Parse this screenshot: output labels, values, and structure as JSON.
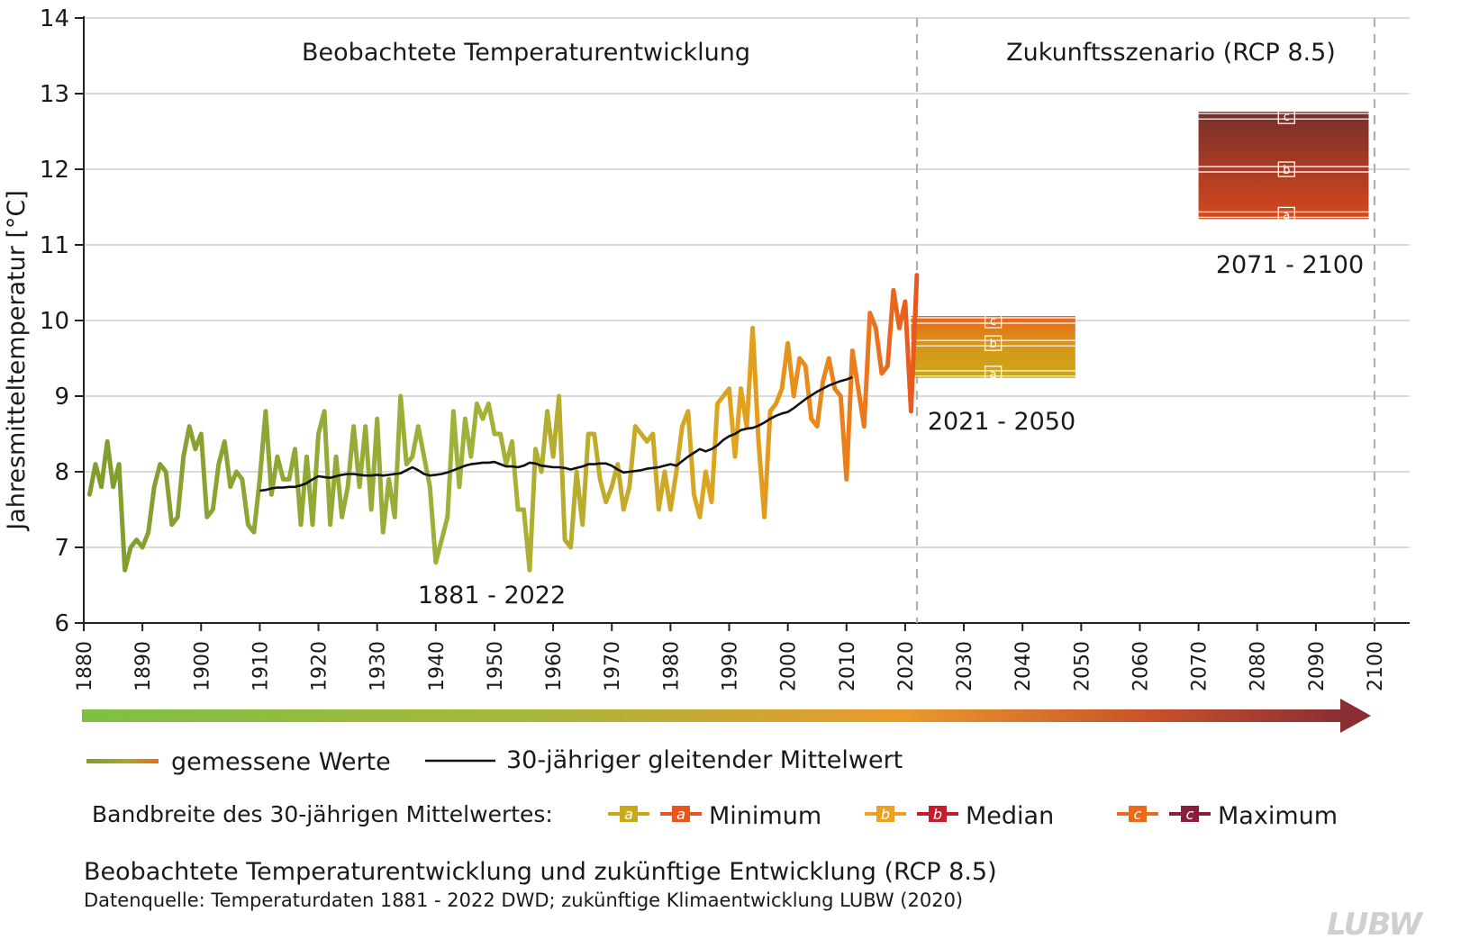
{
  "chart_data": {
    "type": "line",
    "ylabel": "Jahresmitteltemperatur [°C]",
    "ylim": [
      6,
      14
    ],
    "yticks": [
      6,
      7,
      8,
      9,
      10,
      11,
      12,
      13,
      14
    ],
    "xlim": [
      1880,
      2100
    ],
    "xticks": [
      1880,
      1890,
      1900,
      1910,
      1920,
      1930,
      1940,
      1950,
      1960,
      1970,
      1980,
      1990,
      2000,
      2010,
      2020,
      2030,
      2040,
      2050,
      2060,
      2070,
      2080,
      2090,
      2100
    ],
    "grid": true,
    "section_labels": {
      "observed": "Beobachtete Temperaturentwicklung",
      "future": "Zukunftsszenario (RCP 8.5)"
    },
    "annotations": {
      "observed_period": "1881 - 2022",
      "near_future": "2021 - 2050",
      "far_future": "2071 - 2100"
    },
    "series": [
      {
        "name": "gemessene Werte",
        "x_start": 1881,
        "values": [
          7.7,
          8.1,
          7.8,
          8.4,
          7.8,
          8.1,
          6.7,
          7.0,
          7.1,
          7.0,
          7.2,
          7.8,
          8.1,
          8.0,
          7.3,
          7.4,
          8.2,
          8.6,
          8.3,
          8.5,
          7.4,
          7.5,
          8.1,
          8.4,
          7.8,
          8.0,
          7.9,
          7.3,
          7.2,
          7.9,
          8.8,
          7.7,
          8.2,
          7.9,
          7.9,
          8.3,
          7.3,
          8.2,
          7.3,
          8.5,
          8.8,
          7.3,
          8.2,
          7.4,
          7.8,
          8.6,
          7.8,
          8.6,
          7.5,
          8.7,
          7.2,
          7.9,
          7.4,
          9.0,
          8.1,
          8.2,
          8.6,
          8.2,
          7.8,
          6.8,
          7.1,
          7.4,
          8.8,
          7.8,
          8.7,
          8.2,
          8.9,
          8.7,
          8.9,
          8.5,
          8.5,
          8.1,
          8.4,
          7.5,
          7.5,
          6.7,
          8.3,
          8.0,
          8.8,
          8.2,
          9.0,
          7.1,
          7.0,
          8.0,
          7.3,
          8.5,
          8.5,
          7.9,
          7.6,
          7.8,
          8.1,
          7.5,
          7.8,
          8.6,
          8.5,
          8.4,
          8.5,
          7.5,
          8.0,
          7.5,
          8.0,
          8.6,
          8.8,
          7.7,
          7.4,
          8.0,
          7.6,
          8.9,
          9.0,
          9.1,
          8.2,
          9.1,
          8.6,
          9.9,
          8.4,
          7.4,
          8.8,
          8.9,
          9.1,
          9.7,
          9.0,
          9.5,
          9.4,
          8.7,
          8.6,
          9.2,
          9.5,
          9.1,
          9.0,
          7.9,
          9.6,
          9.1,
          8.6,
          10.1,
          9.9,
          9.3,
          9.4,
          10.4,
          9.9,
          10.25,
          8.8,
          10.6
        ],
        "color_from": "#7f9c2e",
        "color_to": "#e8561e"
      },
      {
        "name": "30-jähriger gleitender Mittelwert",
        "x_start": 1910,
        "values": [
          7.75,
          7.76,
          7.78,
          7.79,
          7.79,
          7.8,
          7.8,
          7.82,
          7.85,
          7.9,
          7.94,
          7.93,
          7.92,
          7.94,
          7.96,
          7.97,
          7.97,
          7.96,
          7.95,
          7.95,
          7.96,
          7.95,
          7.96,
          7.97,
          7.98,
          8.02,
          8.06,
          8.02,
          7.97,
          7.95,
          7.96,
          7.97,
          7.99,
          8.02,
          8.05,
          8.08,
          8.1,
          8.11,
          8.12,
          8.12,
          8.13,
          8.1,
          8.07,
          8.07,
          8.06,
          8.08,
          8.12,
          8.11,
          8.08,
          8.07,
          8.06,
          8.06,
          8.05,
          8.03,
          8.05,
          8.07,
          8.1,
          8.1,
          8.11,
          8.11,
          8.08,
          8.03,
          7.99,
          8.0,
          8.01,
          8.02,
          8.04,
          8.05,
          8.06,
          8.08,
          8.1,
          8.08,
          8.14,
          8.2,
          8.25,
          8.3,
          8.27,
          8.3,
          8.35,
          8.42,
          8.47,
          8.5,
          8.55,
          8.57,
          8.58,
          8.61,
          8.65,
          8.7,
          8.74,
          8.77,
          8.79,
          8.84,
          8.9,
          8.96,
          9.01,
          9.06,
          9.1,
          9.14,
          9.17,
          9.2,
          9.22,
          9.25
        ],
        "color": "#111111"
      }
    ],
    "ranges": [
      {
        "period": "2021 - 2050",
        "x_from": 2021,
        "x_to": 2049,
        "marker_x": 2035,
        "minimum": 9.3,
        "median": 9.7,
        "maximum": 10.0,
        "color_low": "#c9a91a",
        "color_high": "#e86a1a"
      },
      {
        "period": "2071 - 2100",
        "x_from": 2070,
        "x_to": 2099,
        "marker_x": 2085,
        "minimum": 11.4,
        "median": 12.0,
        "maximum": 12.7,
        "color_low": "#c94420",
        "color_high": "#7a2f2a"
      }
    ],
    "range_letters": [
      "a",
      "b",
      "c"
    ]
  },
  "legend": {
    "measured": "gemessene Werte",
    "moving_average": "30-jähriger gleitender Mittelwert",
    "band_title": "Bandbreite des 30-jährigen Mittelwertes:",
    "items": [
      {
        "letter": "a",
        "label": "Minimum",
        "color1": "#c9a91a",
        "color2": "#e8561e"
      },
      {
        "letter": "b",
        "label": "Median",
        "color1": "#eea020",
        "color2": "#c41d2e"
      },
      {
        "letter": "c",
        "label": "Maximum",
        "color1": "#ec6a1a",
        "color2": "#8a1f3a"
      }
    ]
  },
  "caption": {
    "title": "Beobachtete Temperaturentwicklung und zukünftige Entwicklung (RCP 8.5)",
    "source": "Datenquelle: Temperaturdaten 1881 - 2022 DWD; zukünftige Klimaentwicklung LUBW (2020)"
  },
  "logo": "LUBW"
}
